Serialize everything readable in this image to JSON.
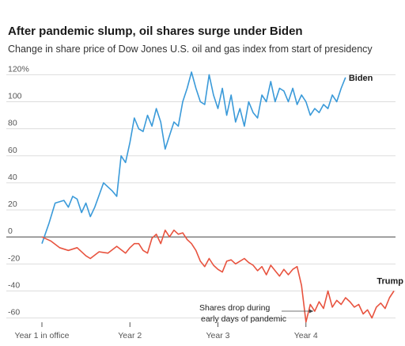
{
  "chart_data": {
    "type": "line",
    "title": "After pandemic slump, oil shares surge under Biden",
    "subtitle": "Change in share price of Dow Jones U.S. oil and gas index from start of presidency",
    "xlabel": "",
    "ylabel": "",
    "x_ticks": [
      "Year 1 in office",
      "Year 2",
      "Year 3",
      "Year 4"
    ],
    "y_ticks": [
      {
        "value": 120,
        "label": "120%"
      },
      {
        "value": 100,
        "label": "100"
      },
      {
        "value": 80,
        "label": "80"
      },
      {
        "value": 60,
        "label": "60"
      },
      {
        "value": 40,
        "label": "40"
      },
      {
        "value": 20,
        "label": "20"
      },
      {
        "value": 0,
        "label": "0"
      },
      {
        "value": -20,
        "label": "-20"
      },
      {
        "value": -40,
        "label": "-40"
      },
      {
        "value": -60,
        "label": "-60"
      }
    ],
    "ylim": [
      -62,
      122
    ],
    "xlim": [
      0,
      4
    ],
    "grid": true,
    "series": [
      {
        "name": "Biden",
        "color": "#3a9ad9",
        "x": [
          0,
          0.08,
          0.15,
          0.25,
          0.3,
          0.35,
          0.4,
          0.45,
          0.5,
          0.55,
          0.6,
          0.7,
          0.75,
          0.8,
          0.85,
          0.9,
          0.95,
          1.0,
          1.05,
          1.1,
          1.15,
          1.2,
          1.25,
          1.3,
          1.35,
          1.4,
          1.45,
          1.5,
          1.55,
          1.6,
          1.65,
          1.7,
          1.75,
          1.8,
          1.85,
          1.9,
          1.95,
          2.0,
          2.05,
          2.1,
          2.15,
          2.2,
          2.25,
          2.3,
          2.35,
          2.4,
          2.45,
          2.5,
          2.55,
          2.6,
          2.65,
          2.7,
          2.75,
          2.8,
          2.85,
          2.9,
          2.95,
          3.0,
          3.05,
          3.1,
          3.15,
          3.2,
          3.25,
          3.3,
          3.35,
          3.4,
          3.45
        ],
        "values": [
          -5,
          10,
          25,
          27,
          22,
          30,
          28,
          18,
          25,
          15,
          22,
          40,
          37,
          34,
          30,
          60,
          55,
          70,
          88,
          80,
          78,
          90,
          82,
          95,
          85,
          65,
          75,
          85,
          82,
          100,
          110,
          122,
          110,
          100,
          98,
          120,
          105,
          95,
          110,
          90,
          105,
          85,
          95,
          82,
          100,
          92,
          88,
          105,
          100,
          115,
          100,
          110,
          108,
          100,
          110,
          98,
          105,
          100,
          90,
          95,
          92,
          98,
          95,
          105,
          100,
          110,
          118
        ]
      },
      {
        "name": "Trump",
        "color": "#e8533f",
        "x": [
          0,
          0.1,
          0.2,
          0.3,
          0.4,
          0.5,
          0.55,
          0.65,
          0.75,
          0.85,
          0.95,
          1.0,
          1.05,
          1.1,
          1.15,
          1.2,
          1.25,
          1.3,
          1.35,
          1.4,
          1.45,
          1.5,
          1.55,
          1.6,
          1.65,
          1.7,
          1.75,
          1.8,
          1.85,
          1.9,
          1.95,
          2.0,
          2.05,
          2.1,
          2.15,
          2.2,
          2.25,
          2.3,
          2.35,
          2.4,
          2.45,
          2.5,
          2.55,
          2.6,
          2.65,
          2.7,
          2.75,
          2.8,
          2.85,
          2.9,
          2.95,
          3.0,
          3.05,
          3.1,
          3.15,
          3.2,
          3.25,
          3.3,
          3.35,
          3.4,
          3.45,
          3.5,
          3.55,
          3.6,
          3.65,
          3.7,
          3.75,
          3.8,
          3.85,
          3.9,
          3.95,
          4.0
        ],
        "values": [
          0,
          -3,
          -8,
          -10,
          -8,
          -14,
          -16,
          -11,
          -12,
          -7,
          -12,
          -8,
          -5,
          -5,
          -10,
          -12,
          -1,
          2,
          -5,
          5,
          0,
          5,
          2,
          3,
          -2,
          -5,
          -10,
          -18,
          -22,
          -16,
          -21,
          -24,
          -26,
          -18,
          -17,
          -20,
          -18,
          -16,
          -19,
          -21,
          -25,
          -22,
          -28,
          -21,
          -25,
          -29,
          -24,
          -28,
          -24,
          -22,
          -36,
          -63,
          -50,
          -55,
          -48,
          -53,
          -40,
          -52,
          -47,
          -50,
          -45,
          -48,
          -52,
          -50,
          -57,
          -54,
          -60,
          -52,
          -49,
          -53,
          -45,
          -40
        ]
      }
    ],
    "annotation": {
      "line1": "Shares drop during",
      "line2": "early days of pandemic",
      "target_x": 3.0,
      "target_y": -38
    }
  }
}
